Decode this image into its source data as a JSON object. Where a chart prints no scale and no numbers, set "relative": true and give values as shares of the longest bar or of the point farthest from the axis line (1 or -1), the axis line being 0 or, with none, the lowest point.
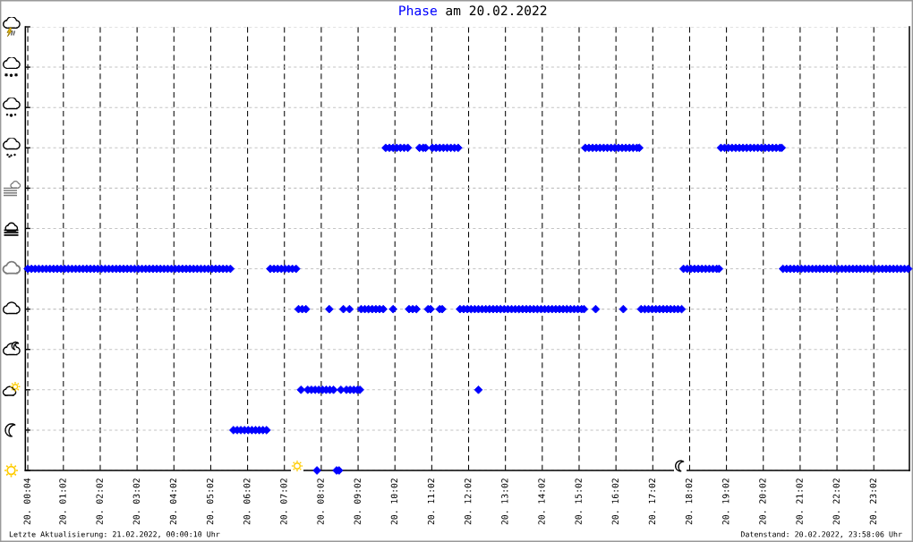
{
  "chart_data": {
    "type": "scatter",
    "title": "Phase am 20.02.2022",
    "marker": "diamond",
    "grid": true,
    "relative": true,
    "tick_labels": "x",
    "xlim": [
      "2022-02-20T00:00",
      "2022-02-21T00:00"
    ],
    "xticks": [
      {
        "value": "2022-02-20T00:04",
        "label": "20. 00:04"
      },
      {
        "value": "2022-02-20T01:02",
        "label": "20. 01:02"
      },
      {
        "value": "2022-02-20T02:02",
        "label": "20. 02:02"
      },
      {
        "value": "2022-02-20T03:02",
        "label": "20. 03:02"
      },
      {
        "value": "2022-02-20T04:02",
        "label": "20. 04:02"
      },
      {
        "value": "2022-02-20T05:02",
        "label": "20. 05:02"
      },
      {
        "value": "2022-02-20T06:02",
        "label": "20. 06:02"
      },
      {
        "value": "2022-02-20T07:02",
        "label": "20. 07:02"
      },
      {
        "value": "2022-02-20T08:02",
        "label": "20. 08:02"
      },
      {
        "value": "2022-02-20T09:02",
        "label": "20. 09:02"
      },
      {
        "value": "2022-02-20T10:02",
        "label": "20. 10:02"
      },
      {
        "value": "2022-02-20T11:02",
        "label": "20. 11:02"
      },
      {
        "value": "2022-02-20T12:02",
        "label": "20. 12:02"
      },
      {
        "value": "2022-02-20T13:02",
        "label": "20. 13:02"
      },
      {
        "value": "2022-02-20T14:02",
        "label": "20. 14:02"
      },
      {
        "value": "2022-02-20T15:02",
        "label": "20. 15:02"
      },
      {
        "value": "2022-02-20T16:02",
        "label": "20. 16:02"
      },
      {
        "value": "2022-02-20T17:02",
        "label": "20. 17:02"
      },
      {
        "value": "2022-02-20T18:02",
        "label": "20. 18:02"
      },
      {
        "value": "2022-02-20T19:02",
        "label": "20. 19:02"
      },
      {
        "value": "2022-02-20T20:02",
        "label": "20. 20:02"
      },
      {
        "value": "2022-02-20T21:02",
        "label": "20. 21:02"
      },
      {
        "value": "2022-02-20T22:02",
        "label": "20. 22:02"
      },
      {
        "value": "2022-02-20T23:02",
        "label": "20. 23:02"
      }
    ],
    "series": [
      {
        "color": "#0000ff",
        "x": [
          "2022-02-20T00:04",
          "2022-02-20T00:10",
          "2022-02-20T00:16",
          "2022-02-20T00:22",
          "2022-02-20T00:28",
          "2022-02-20T00:34",
          "2022-02-20T00:40",
          "2022-02-20T00:46",
          "2022-02-20T00:52",
          "2022-02-20T00:58",
          "2022-02-20T01:04",
          "2022-02-20T01:10",
          "2022-02-20T01:16",
          "2022-02-20T01:22",
          "2022-02-20T01:28",
          "2022-02-20T01:34",
          "2022-02-20T01:40",
          "2022-02-20T01:46",
          "2022-02-20T01:52",
          "2022-02-20T01:58",
          "2022-02-20T02:04",
          "2022-02-20T02:10",
          "2022-02-20T02:16",
          "2022-02-20T02:22",
          "2022-02-20T02:28",
          "2022-02-20T02:34",
          "2022-02-20T02:40",
          "2022-02-20T02:46",
          "2022-02-20T02:52",
          "2022-02-20T02:58",
          "2022-02-20T03:04",
          "2022-02-20T03:10",
          "2022-02-20T03:16",
          "2022-02-20T03:22",
          "2022-02-20T03:28",
          "2022-02-20T03:34",
          "2022-02-20T03:40",
          "2022-02-20T03:46",
          "2022-02-20T03:52",
          "2022-02-20T03:58",
          "2022-02-20T04:04",
          "2022-02-20T04:10",
          "2022-02-20T04:16",
          "2022-02-20T04:22",
          "2022-02-20T04:28",
          "2022-02-20T04:34",
          "2022-02-20T04:40",
          "2022-02-20T04:46",
          "2022-02-20T04:52",
          "2022-02-20T04:58",
          "2022-02-20T05:04",
          "2022-02-20T05:10",
          "2022-02-20T05:16",
          "2022-02-20T05:22",
          "2022-02-20T05:28",
          "2022-02-20T05:34",
          "2022-02-20T05:39",
          "2022-02-20T05:45",
          "2022-02-20T05:51",
          "2022-02-20T05:57",
          "2022-02-20T06:03",
          "2022-02-20T06:09",
          "2022-02-20T06:15",
          "2022-02-20T06:21",
          "2022-02-20T06:27",
          "2022-02-20T06:33",
          "2022-02-20T06:39",
          "2022-02-20T06:45",
          "2022-02-20T06:51",
          "2022-02-20T06:57",
          "2022-02-20T07:03",
          "2022-02-20T07:09",
          "2022-02-20T07:15",
          "2022-02-20T07:21",
          "2022-02-20T07:25",
          "2022-02-20T07:29",
          "2022-02-20T07:31",
          "2022-02-20T07:37",
          "2022-02-20T07:40",
          "2022-02-20T07:46",
          "2022-02-20T07:52",
          "2022-02-20T07:55",
          "2022-02-20T07:58",
          "2022-02-20T08:04",
          "2022-02-20T08:10",
          "2022-02-20T08:15",
          "2022-02-20T08:16",
          "2022-02-20T08:22",
          "2022-02-20T08:27",
          "2022-02-20T08:31",
          "2022-02-20T08:34",
          "2022-02-20T08:38",
          "2022-02-20T08:43",
          "2022-02-20T08:48",
          "2022-02-20T08:49",
          "2022-02-20T08:55",
          "2022-02-20T09:01",
          "2022-02-20T09:05",
          "2022-02-20T09:07",
          "2022-02-20T09:13",
          "2022-02-20T09:19",
          "2022-02-20T09:25",
          "2022-02-20T09:31",
          "2022-02-20T09:37",
          "2022-02-20T09:43",
          "2022-02-20T09:47",
          "2022-02-20T09:53",
          "2022-02-20T09:59",
          "2022-02-20T09:59",
          "2022-02-20T10:05",
          "2022-02-20T10:11",
          "2022-02-20T10:17",
          "2022-02-20T10:23",
          "2022-02-20T10:25",
          "2022-02-20T10:31",
          "2022-02-20T10:37",
          "2022-02-20T10:42",
          "2022-02-20T10:48",
          "2022-02-20T10:52",
          "2022-02-20T10:56",
          "2022-02-20T11:00",
          "2022-02-20T11:03",
          "2022-02-20T11:09",
          "2022-02-20T11:15",
          "2022-02-20T11:15",
          "2022-02-20T11:19",
          "2022-02-20T11:21",
          "2022-02-20T11:27",
          "2022-02-20T11:33",
          "2022-02-20T11:39",
          "2022-02-20T11:45",
          "2022-02-20T11:48",
          "2022-02-20T11:54",
          "2022-02-20T12:00",
          "2022-02-20T12:06",
          "2022-02-20T12:12",
          "2022-02-20T12:18",
          "2022-02-20T12:18",
          "2022-02-20T12:24",
          "2022-02-20T12:30",
          "2022-02-20T12:36",
          "2022-02-20T12:42",
          "2022-02-20T12:48",
          "2022-02-20T12:54",
          "2022-02-20T13:00",
          "2022-02-20T13:06",
          "2022-02-20T13:12",
          "2022-02-20T13:18",
          "2022-02-20T13:24",
          "2022-02-20T13:30",
          "2022-02-20T13:36",
          "2022-02-20T13:42",
          "2022-02-20T13:48",
          "2022-02-20T13:54",
          "2022-02-20T14:00",
          "2022-02-20T14:06",
          "2022-02-20T14:12",
          "2022-02-20T14:18",
          "2022-02-20T14:24",
          "2022-02-20T14:30",
          "2022-02-20T14:36",
          "2022-02-20T14:42",
          "2022-02-20T14:48",
          "2022-02-20T14:54",
          "2022-02-20T15:00",
          "2022-02-20T15:06",
          "2022-02-20T15:10",
          "2022-02-20T15:12",
          "2022-02-20T15:18",
          "2022-02-20T15:24",
          "2022-02-20T15:29",
          "2022-02-20T15:30",
          "2022-02-20T15:36",
          "2022-02-20T15:42",
          "2022-02-20T15:48",
          "2022-02-20T15:54",
          "2022-02-20T16:00",
          "2022-02-20T16:06",
          "2022-02-20T16:12",
          "2022-02-20T16:14",
          "2022-02-20T16:18",
          "2022-02-20T16:24",
          "2022-02-20T16:30",
          "2022-02-20T16:36",
          "2022-02-20T16:40",
          "2022-02-20T16:43",
          "2022-02-20T16:49",
          "2022-02-20T16:55",
          "2022-02-20T17:01",
          "2022-02-20T17:07",
          "2022-02-20T17:13",
          "2022-02-20T17:19",
          "2022-02-20T17:25",
          "2022-02-20T17:31",
          "2022-02-20T17:37",
          "2022-02-20T17:43",
          "2022-02-20T17:49",
          "2022-02-20T17:52",
          "2022-02-20T17:58",
          "2022-02-20T18:04",
          "2022-02-20T18:10",
          "2022-02-20T18:16",
          "2022-02-20T18:22",
          "2022-02-20T18:28",
          "2022-02-20T18:34",
          "2022-02-20T18:40",
          "2022-02-20T18:46",
          "2022-02-20T18:50",
          "2022-02-20T18:53",
          "2022-02-20T18:59",
          "2022-02-20T19:05",
          "2022-02-20T19:11",
          "2022-02-20T19:17",
          "2022-02-20T19:23",
          "2022-02-20T19:29",
          "2022-02-20T19:35",
          "2022-02-20T19:41",
          "2022-02-20T19:47",
          "2022-02-20T19:53",
          "2022-02-20T19:59",
          "2022-02-20T20:05",
          "2022-02-20T20:11",
          "2022-02-20T20:17",
          "2022-02-20T20:23",
          "2022-02-20T20:29",
          "2022-02-20T20:32",
          "2022-02-20T20:34",
          "2022-02-20T20:40",
          "2022-02-20T20:46",
          "2022-02-20T20:52",
          "2022-02-20T20:58",
          "2022-02-20T21:04",
          "2022-02-20T21:10",
          "2022-02-20T21:16",
          "2022-02-20T21:22",
          "2022-02-20T21:28",
          "2022-02-20T21:34",
          "2022-02-20T21:40",
          "2022-02-20T21:46",
          "2022-02-20T21:52",
          "2022-02-20T21:58",
          "2022-02-20T22:04",
          "2022-02-20T22:10",
          "2022-02-20T22:16",
          "2022-02-20T22:22",
          "2022-02-20T22:28",
          "2022-02-20T22:34",
          "2022-02-20T22:40",
          "2022-02-20T22:46",
          "2022-02-20T22:52",
          "2022-02-20T22:58",
          "2022-02-20T23:04",
          "2022-02-20T23:10",
          "2022-02-20T23:16",
          "2022-02-20T23:22",
          "2022-02-20T23:28",
          "2022-02-20T23:34",
          "2022-02-20T23:40",
          "2022-02-20T23:46",
          "2022-02-20T23:52",
          "2022-02-20T23:58"
        ],
        "values": [
          0.625,
          0.625,
          0.625,
          0.625,
          0.625,
          0.625,
          0.625,
          0.625,
          0.625,
          0.625,
          0.625,
          0.625,
          0.625,
          0.625,
          0.625,
          0.625,
          0.625,
          0.625,
          0.625,
          0.625,
          0.625,
          0.625,
          0.625,
          0.625,
          0.625,
          0.625,
          0.625,
          0.625,
          0.625,
          0.625,
          0.625,
          0.625,
          0.625,
          0.625,
          0.625,
          0.625,
          0.625,
          0.625,
          0.625,
          0.625,
          0.625,
          0.625,
          0.625,
          0.625,
          0.625,
          0.625,
          0.625,
          0.625,
          0.625,
          0.625,
          0.625,
          0.625,
          0.625,
          0.625,
          0.625,
          0.625,
          0.125,
          0.125,
          0.125,
          0.125,
          0.125,
          0.125,
          0.125,
          0.125,
          0.125,
          0.125,
          0.625,
          0.625,
          0.625,
          0.625,
          0.625,
          0.625,
          0.625,
          0.625,
          0.5,
          0.25,
          0.5,
          0.5,
          0.25,
          0.25,
          0.25,
          0,
          0.25,
          0.25,
          0.25,
          0.5,
          0.25,
          0.25,
          0,
          0,
          0.25,
          0.5,
          0.25,
          0.5,
          0.25,
          0.25,
          0.25,
          0.25,
          0.5,
          0.5,
          0.5,
          0.5,
          0.5,
          0.5,
          0.5,
          1,
          1,
          1,
          0.5,
          1,
          1,
          1,
          1,
          0.5,
          0.5,
          0.5,
          1,
          1,
          1,
          0.5,
          0.5,
          1,
          1,
          1,
          0.5,
          0.5,
          1,
          1,
          1,
          1,
          1,
          0.5,
          0.5,
          0.5,
          0.5,
          0.5,
          0.5,
          0.25,
          0.5,
          0.5,
          0.5,
          0.5,
          0.5,
          0.5,
          0.5,
          0.5,
          0.5,
          0.5,
          0.5,
          0.5,
          0.5,
          0.5,
          0.5,
          0.5,
          0.5,
          0.5,
          0.5,
          0.5,
          0.5,
          0.5,
          0.5,
          0.5,
          0.5,
          0.5,
          0.5,
          0.5,
          0.5,
          1,
          1,
          1,
          0.5,
          1,
          1,
          1,
          1,
          1,
          1,
          1,
          1,
          0.5,
          1,
          1,
          1,
          1,
          1,
          0.5,
          0.5,
          0.5,
          0.5,
          0.5,
          0.5,
          0.5,
          0.5,
          0.5,
          0.5,
          0.5,
          0.5,
          0.625,
          0.625,
          0.625,
          0.625,
          0.625,
          0.625,
          0.625,
          0.625,
          0.625,
          0.625,
          0.625,
          1,
          1,
          1,
          1,
          1,
          1,
          1,
          1,
          1,
          1,
          1,
          1,
          1,
          1,
          1,
          1,
          1,
          1,
          0.625,
          0.625,
          0.625,
          0.625,
          0.625,
          0.625,
          0.625,
          0.625,
          0.625,
          0.625,
          0.625,
          0.625,
          0.625,
          0.625,
          0.625,
          0.625,
          0.625,
          0.625,
          0.625,
          0.625,
          0.625,
          0.625,
          0.625,
          0.625,
          0.625,
          0.625,
          0.625,
          0.625,
          0.625,
          0.625,
          0.625,
          0.625,
          0.625,
          0.625,
          0.625
        ]
      }
    ],
    "annotations": [
      "Letzte Aktualisierung: 21.02.2022, 00:00:10 Uhr",
      "Datenstand: 20.02.2022, 23:58:06 Uhr"
    ]
  }
}
